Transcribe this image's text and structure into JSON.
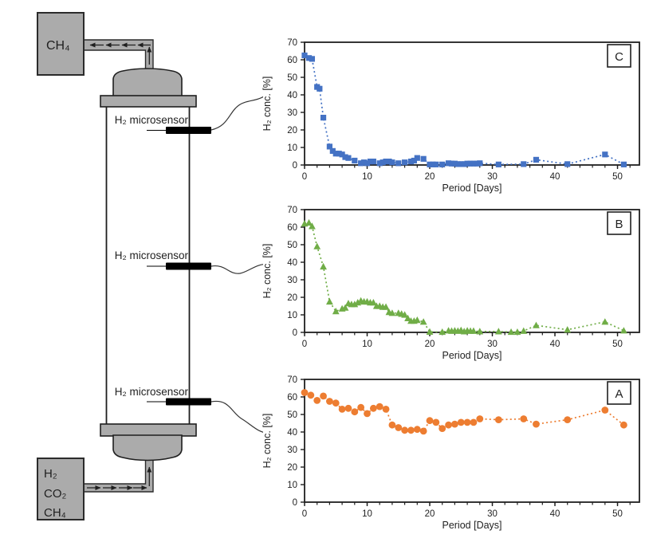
{
  "diagram": {
    "top_box_label": "CH₄",
    "bottom_box_lines": [
      "H₂",
      "CO₂",
      "CH₄"
    ],
    "sensor_label": "H₂ microsensor",
    "colors": {
      "box_fill": "#ababab",
      "outline": "#1f1f1f",
      "sensor": "#000000"
    }
  },
  "chart_data": [
    {
      "id": "C",
      "type": "scatter",
      "panel_label": "C",
      "marker": "square",
      "color": "#4472C4",
      "line_style": "dotted",
      "xlabel": "Period [Days]",
      "ylabel": "H₂ conc. [%]",
      "xlim": [
        0,
        53.5
      ],
      "ylim": [
        0,
        70
      ],
      "xticks": [
        0,
        10,
        20,
        30,
        40,
        50
      ],
      "yticks": [
        0,
        10,
        20,
        30,
        40,
        50,
        60,
        70
      ],
      "minor_xtick_step": 2,
      "grid": false,
      "points": [
        [
          0,
          62.5
        ],
        [
          0.7,
          61
        ],
        [
          1.2,
          60.5
        ],
        [
          2,
          44.5
        ],
        [
          2.4,
          43.5
        ],
        [
          3,
          27
        ],
        [
          4,
          10.5
        ],
        [
          4.5,
          8
        ],
        [
          5,
          6.5
        ],
        [
          5.5,
          6.5
        ],
        [
          6,
          6
        ],
        [
          6.5,
          4.5
        ],
        [
          7,
          4
        ],
        [
          8,
          2.5
        ],
        [
          9,
          1
        ],
        [
          9.5,
          1.5
        ],
        [
          10,
          1
        ],
        [
          10.5,
          2
        ],
        [
          11,
          2
        ],
        [
          12,
          1
        ],
        [
          12.5,
          1.5
        ],
        [
          13,
          2
        ],
        [
          13.5,
          2
        ],
        [
          14,
          1.5
        ],
        [
          15,
          1
        ],
        [
          16,
          1.5
        ],
        [
          17,
          2
        ],
        [
          17.5,
          2.5
        ],
        [
          18,
          4
        ],
        [
          19,
          3.5
        ],
        [
          20,
          0.3
        ],
        [
          20.5,
          0.3
        ],
        [
          21,
          0.3
        ],
        [
          22,
          0.3
        ],
        [
          23,
          1
        ],
        [
          23.5,
          0.8
        ],
        [
          24,
          0.8
        ],
        [
          24.5,
          0.5
        ],
        [
          25,
          0.5
        ],
        [
          25.5,
          0.5
        ],
        [
          26,
          0.8
        ],
        [
          26.5,
          0.8
        ],
        [
          27,
          0.8
        ],
        [
          27.5,
          0.8
        ],
        [
          28,
          1
        ],
        [
          31,
          0.3
        ],
        [
          35,
          0.5
        ],
        [
          37,
          3
        ],
        [
          42,
          0.5
        ],
        [
          48,
          6
        ],
        [
          51,
          0.3
        ]
      ]
    },
    {
      "id": "B",
      "type": "scatter",
      "panel_label": "B",
      "marker": "triangle",
      "color": "#70AD47",
      "line_style": "dotted",
      "xlabel": "Period [Days]",
      "ylabel": "H₂ conc. [%]",
      "xlim": [
        0,
        53.5
      ],
      "ylim": [
        0,
        70
      ],
      "xticks": [
        0,
        10,
        20,
        30,
        40,
        50
      ],
      "yticks": [
        0,
        10,
        20,
        30,
        40,
        50,
        60,
        70
      ],
      "minor_xtick_step": 2,
      "grid": false,
      "points": [
        [
          0,
          62
        ],
        [
          0.7,
          62.5
        ],
        [
          1.2,
          60.5
        ],
        [
          2,
          49
        ],
        [
          3,
          37.5
        ],
        [
          4,
          17.5
        ],
        [
          5,
          12
        ],
        [
          6,
          13.5
        ],
        [
          6.5,
          14
        ],
        [
          7,
          16.5
        ],
        [
          7.5,
          16
        ],
        [
          8,
          16
        ],
        [
          8.5,
          17
        ],
        [
          9,
          18
        ],
        [
          9.5,
          17.5
        ],
        [
          10,
          17.5
        ],
        [
          10.5,
          17
        ],
        [
          11,
          17
        ],
        [
          11.5,
          15
        ],
        [
          12,
          15
        ],
        [
          12.5,
          14.5
        ],
        [
          13,
          14.5
        ],
        [
          13.5,
          11.5
        ],
        [
          14,
          11
        ],
        [
          15,
          11
        ],
        [
          15.5,
          10.5
        ],
        [
          16,
          10
        ],
        [
          16.5,
          8
        ],
        [
          17,
          6.5
        ],
        [
          17.5,
          6.5
        ],
        [
          18,
          7
        ],
        [
          19,
          6
        ],
        [
          20,
          0.3
        ],
        [
          22,
          0.2
        ],
        [
          23,
          1
        ],
        [
          23.5,
          0.8
        ],
        [
          24,
          1
        ],
        [
          24.5,
          0.8
        ],
        [
          25,
          1.2
        ],
        [
          25.5,
          0.5
        ],
        [
          26,
          1
        ],
        [
          26.5,
          0.8
        ],
        [
          27,
          0.8
        ],
        [
          28,
          0.5
        ],
        [
          31,
          0.5
        ],
        [
          33,
          0.2
        ],
        [
          34,
          0.2
        ],
        [
          35,
          0.8
        ],
        [
          37,
          4
        ],
        [
          42,
          1.5
        ],
        [
          48,
          6
        ],
        [
          51,
          1
        ]
      ]
    },
    {
      "id": "A",
      "type": "scatter",
      "panel_label": "A",
      "marker": "circle",
      "color": "#ED7D31",
      "line_style": "dotted",
      "xlabel": "Period [Days]",
      "ylabel": "H₂ conc. [%]",
      "xlim": [
        0,
        53.5
      ],
      "ylim": [
        0,
        70
      ],
      "xticks": [
        0,
        10,
        20,
        30,
        40,
        50
      ],
      "yticks": [
        0,
        10,
        20,
        30,
        40,
        50,
        60,
        70
      ],
      "minor_xtick_step": 2,
      "grid": false,
      "points": [
        [
          0,
          62.5
        ],
        [
          1,
          61
        ],
        [
          2,
          58
        ],
        [
          3,
          60.5
        ],
        [
          4,
          57.5
        ],
        [
          5,
          56.5
        ],
        [
          6,
          53
        ],
        [
          7,
          53.5
        ],
        [
          8,
          51.5
        ],
        [
          9,
          54
        ],
        [
          10,
          50.5
        ],
        [
          11,
          53.5
        ],
        [
          12,
          54.5
        ],
        [
          13,
          53
        ],
        [
          14,
          44
        ],
        [
          15,
          42.5
        ],
        [
          16,
          41
        ],
        [
          17,
          41
        ],
        [
          18,
          41.5
        ],
        [
          19,
          40.5
        ],
        [
          20,
          46.5
        ],
        [
          21,
          45.5
        ],
        [
          22,
          42
        ],
        [
          23,
          44
        ],
        [
          24,
          44.5
        ],
        [
          25,
          45.5
        ],
        [
          26,
          45.5
        ],
        [
          27,
          45.5
        ],
        [
          28,
          47.5
        ],
        [
          31,
          47
        ],
        [
          35,
          47.5
        ],
        [
          37,
          44.5
        ],
        [
          42,
          47
        ],
        [
          48,
          52.5
        ],
        [
          51,
          44
        ]
      ]
    }
  ]
}
